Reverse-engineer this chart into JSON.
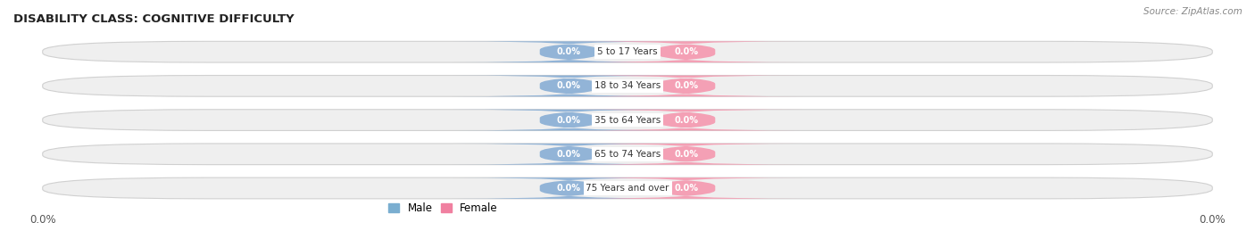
{
  "title": "DISABILITY CLASS: COGNITIVE DIFFICULTY",
  "source": "Source: ZipAtlas.com",
  "categories": [
    "5 to 17 Years",
    "18 to 34 Years",
    "35 to 64 Years",
    "65 to 74 Years",
    "75 Years and over"
  ],
  "male_values": [
    0.0,
    0.0,
    0.0,
    0.0,
    0.0
  ],
  "female_values": [
    0.0,
    0.0,
    0.0,
    0.0,
    0.0
  ],
  "male_color": "#92b4d7",
  "female_color": "#f4a0b5",
  "bar_bg_color": "#efefef",
  "bar_outline_color": "#d0d0d0",
  "title_color": "#222222",
  "source_color": "#888888",
  "legend_male_color": "#7aaed0",
  "legend_female_color": "#f080a0",
  "axis_label_color": "#555555",
  "fig_width": 14.06,
  "fig_height": 2.68,
  "dpi": 100
}
